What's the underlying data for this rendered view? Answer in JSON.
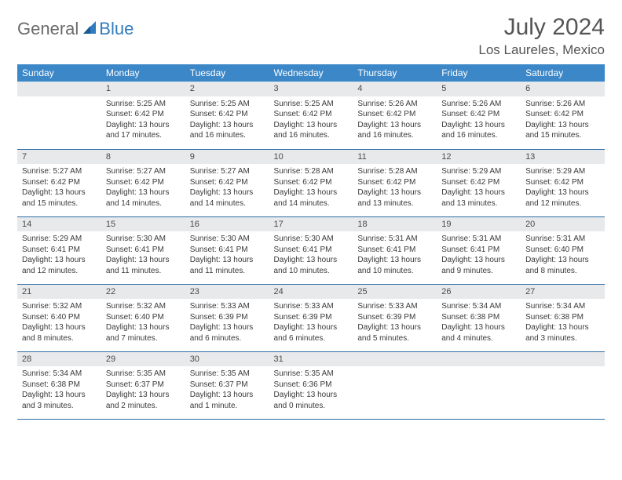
{
  "logo": {
    "general": "General",
    "blue": "Blue"
  },
  "title": "July 2024",
  "location": "Los Laureles, Mexico",
  "colors": {
    "header_bg": "#3b87c8",
    "header_text": "#ffffff",
    "daynum_bg": "#e8e9ea",
    "row_divider": "#2f6ea8",
    "logo_gray": "#6b6b6b",
    "logo_blue": "#2f7bbf",
    "text": "#3a3a3a",
    "title_color": "#555555"
  },
  "daysOfWeek": [
    "Sunday",
    "Monday",
    "Tuesday",
    "Wednesday",
    "Thursday",
    "Friday",
    "Saturday"
  ],
  "weeks": [
    [
      {
        "num": "",
        "lines": []
      },
      {
        "num": "1",
        "lines": [
          "Sunrise: 5:25 AM",
          "Sunset: 6:42 PM",
          "Daylight: 13 hours and 17 minutes."
        ]
      },
      {
        "num": "2",
        "lines": [
          "Sunrise: 5:25 AM",
          "Sunset: 6:42 PM",
          "Daylight: 13 hours and 16 minutes."
        ]
      },
      {
        "num": "3",
        "lines": [
          "Sunrise: 5:25 AM",
          "Sunset: 6:42 PM",
          "Daylight: 13 hours and 16 minutes."
        ]
      },
      {
        "num": "4",
        "lines": [
          "Sunrise: 5:26 AM",
          "Sunset: 6:42 PM",
          "Daylight: 13 hours and 16 minutes."
        ]
      },
      {
        "num": "5",
        "lines": [
          "Sunrise: 5:26 AM",
          "Sunset: 6:42 PM",
          "Daylight: 13 hours and 16 minutes."
        ]
      },
      {
        "num": "6",
        "lines": [
          "Sunrise: 5:26 AM",
          "Sunset: 6:42 PM",
          "Daylight: 13 hours and 15 minutes."
        ]
      }
    ],
    [
      {
        "num": "7",
        "lines": [
          "Sunrise: 5:27 AM",
          "Sunset: 6:42 PM",
          "Daylight: 13 hours and 15 minutes."
        ]
      },
      {
        "num": "8",
        "lines": [
          "Sunrise: 5:27 AM",
          "Sunset: 6:42 PM",
          "Daylight: 13 hours and 14 minutes."
        ]
      },
      {
        "num": "9",
        "lines": [
          "Sunrise: 5:27 AM",
          "Sunset: 6:42 PM",
          "Daylight: 13 hours and 14 minutes."
        ]
      },
      {
        "num": "10",
        "lines": [
          "Sunrise: 5:28 AM",
          "Sunset: 6:42 PM",
          "Daylight: 13 hours and 14 minutes."
        ]
      },
      {
        "num": "11",
        "lines": [
          "Sunrise: 5:28 AM",
          "Sunset: 6:42 PM",
          "Daylight: 13 hours and 13 minutes."
        ]
      },
      {
        "num": "12",
        "lines": [
          "Sunrise: 5:29 AM",
          "Sunset: 6:42 PM",
          "Daylight: 13 hours and 13 minutes."
        ]
      },
      {
        "num": "13",
        "lines": [
          "Sunrise: 5:29 AM",
          "Sunset: 6:42 PM",
          "Daylight: 13 hours and 12 minutes."
        ]
      }
    ],
    [
      {
        "num": "14",
        "lines": [
          "Sunrise: 5:29 AM",
          "Sunset: 6:41 PM",
          "Daylight: 13 hours and 12 minutes."
        ]
      },
      {
        "num": "15",
        "lines": [
          "Sunrise: 5:30 AM",
          "Sunset: 6:41 PM",
          "Daylight: 13 hours and 11 minutes."
        ]
      },
      {
        "num": "16",
        "lines": [
          "Sunrise: 5:30 AM",
          "Sunset: 6:41 PM",
          "Daylight: 13 hours and 11 minutes."
        ]
      },
      {
        "num": "17",
        "lines": [
          "Sunrise: 5:30 AM",
          "Sunset: 6:41 PM",
          "Daylight: 13 hours and 10 minutes."
        ]
      },
      {
        "num": "18",
        "lines": [
          "Sunrise: 5:31 AM",
          "Sunset: 6:41 PM",
          "Daylight: 13 hours and 10 minutes."
        ]
      },
      {
        "num": "19",
        "lines": [
          "Sunrise: 5:31 AM",
          "Sunset: 6:41 PM",
          "Daylight: 13 hours and 9 minutes."
        ]
      },
      {
        "num": "20",
        "lines": [
          "Sunrise: 5:31 AM",
          "Sunset: 6:40 PM",
          "Daylight: 13 hours and 8 minutes."
        ]
      }
    ],
    [
      {
        "num": "21",
        "lines": [
          "Sunrise: 5:32 AM",
          "Sunset: 6:40 PM",
          "Daylight: 13 hours and 8 minutes."
        ]
      },
      {
        "num": "22",
        "lines": [
          "Sunrise: 5:32 AM",
          "Sunset: 6:40 PM",
          "Daylight: 13 hours and 7 minutes."
        ]
      },
      {
        "num": "23",
        "lines": [
          "Sunrise: 5:33 AM",
          "Sunset: 6:39 PM",
          "Daylight: 13 hours and 6 minutes."
        ]
      },
      {
        "num": "24",
        "lines": [
          "Sunrise: 5:33 AM",
          "Sunset: 6:39 PM",
          "Daylight: 13 hours and 6 minutes."
        ]
      },
      {
        "num": "25",
        "lines": [
          "Sunrise: 5:33 AM",
          "Sunset: 6:39 PM",
          "Daylight: 13 hours and 5 minutes."
        ]
      },
      {
        "num": "26",
        "lines": [
          "Sunrise: 5:34 AM",
          "Sunset: 6:38 PM",
          "Daylight: 13 hours and 4 minutes."
        ]
      },
      {
        "num": "27",
        "lines": [
          "Sunrise: 5:34 AM",
          "Sunset: 6:38 PM",
          "Daylight: 13 hours and 3 minutes."
        ]
      }
    ],
    [
      {
        "num": "28",
        "lines": [
          "Sunrise: 5:34 AM",
          "Sunset: 6:38 PM",
          "Daylight: 13 hours and 3 minutes."
        ]
      },
      {
        "num": "29",
        "lines": [
          "Sunrise: 5:35 AM",
          "Sunset: 6:37 PM",
          "Daylight: 13 hours and 2 minutes."
        ]
      },
      {
        "num": "30",
        "lines": [
          "Sunrise: 5:35 AM",
          "Sunset: 6:37 PM",
          "Daylight: 13 hours and 1 minute."
        ]
      },
      {
        "num": "31",
        "lines": [
          "Sunrise: 5:35 AM",
          "Sunset: 6:36 PM",
          "Daylight: 13 hours and 0 minutes."
        ]
      },
      {
        "num": "",
        "lines": []
      },
      {
        "num": "",
        "lines": []
      },
      {
        "num": "",
        "lines": []
      }
    ]
  ]
}
